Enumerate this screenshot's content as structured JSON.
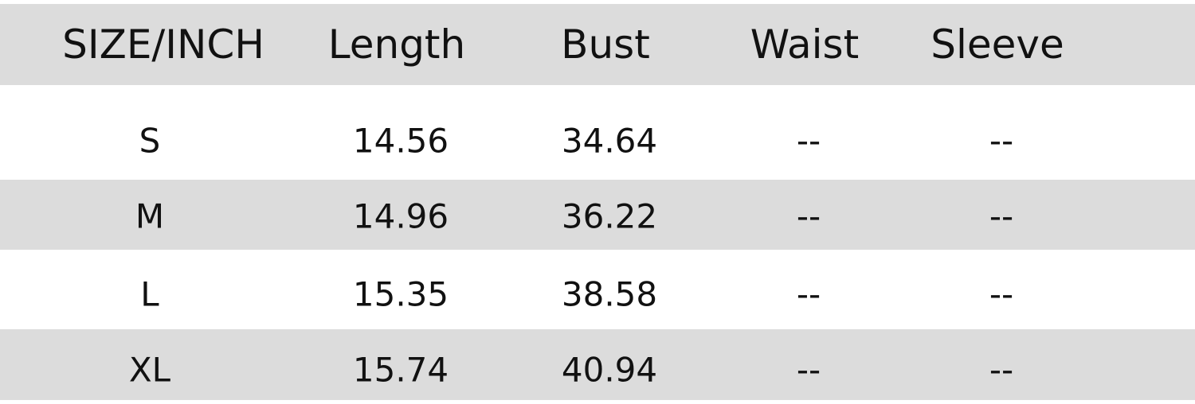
{
  "table": {
    "header": [
      "SIZE/INCH",
      "Length",
      "Bust",
      "Waist",
      "Sleeve"
    ],
    "rows": [
      [
        "S",
        "14.56",
        "34.64",
        "--",
        "--"
      ],
      [
        "M",
        "14.96",
        "36.22",
        "--",
        "--"
      ],
      [
        "L",
        "15.35",
        "38.58",
        "--",
        "--"
      ],
      [
        "XL",
        "15.74",
        "40.94",
        "--",
        "--"
      ]
    ]
  }
}
